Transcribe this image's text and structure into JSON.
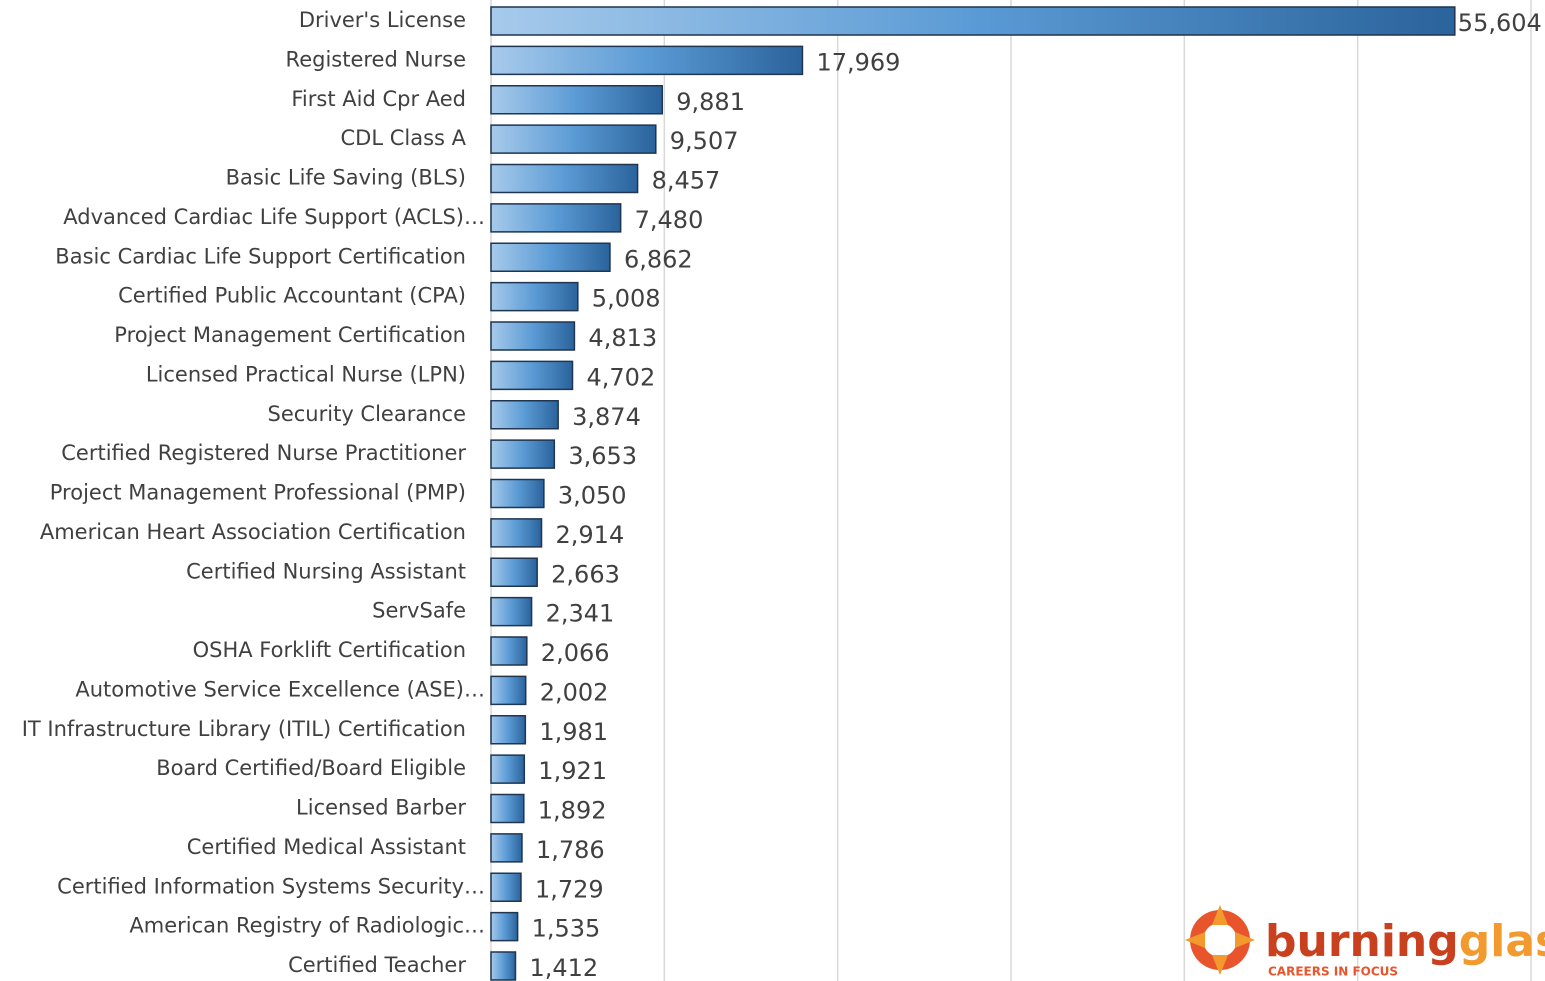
{
  "chart_data": {
    "type": "barh",
    "categories": [
      "Driver's License",
      "Registered Nurse",
      "First Aid Cpr Aed",
      "CDL Class A",
      "Basic Life Saving (BLS)",
      "Advanced Cardiac Life Support (ACLS)…",
      "Basic Cardiac Life Support Certification",
      "Certified Public Accountant (CPA)",
      "Project Management Certification",
      "Licensed Practical Nurse (LPN)",
      "Security Clearance",
      "Certified Registered Nurse Practitioner",
      "Project Management Professional (PMP)",
      "American Heart Association Certification",
      "Certified Nursing Assistant",
      "ServSafe",
      "OSHA Forklift Certification",
      "Automotive Service Excellence (ASE)…",
      "IT Infrastructure Library (ITIL) Certification",
      "Board Certified/Board Eligible",
      "Licensed Barber",
      "Certified Medical Assistant",
      "Certified Information Systems Security…",
      "American Registry of Radiologic…",
      "Certified Teacher"
    ],
    "values": [
      55604,
      17969,
      9881,
      9507,
      8457,
      7480,
      6862,
      5008,
      4813,
      4702,
      3874,
      3653,
      3050,
      2914,
      2663,
      2341,
      2066,
      2002,
      1981,
      1921,
      1892,
      1786,
      1729,
      1535,
      1412
    ],
    "value_labels": [
      "55,604",
      "17,969",
      "9,881",
      "9,507",
      "8,457",
      "7,480",
      "6,862",
      "5,008",
      "4,813",
      "4,702",
      "3,874",
      "3,653",
      "3,050",
      "2,914",
      "2,663",
      "2,341",
      "2,066",
      "2,002",
      "1,981",
      "1,921",
      "1,892",
      "1,786",
      "1,729",
      "1,535",
      "1,412"
    ],
    "color": "#2e6aa6",
    "xlim": [
      0,
      60000
    ],
    "xticks": [
      0,
      10000,
      20000,
      30000,
      40000,
      50000,
      60000
    ],
    "grid": true
  },
  "logo": {
    "name_1": "burning",
    "name_2": "glass",
    "tagline": "CAREERS IN FOCUS"
  }
}
